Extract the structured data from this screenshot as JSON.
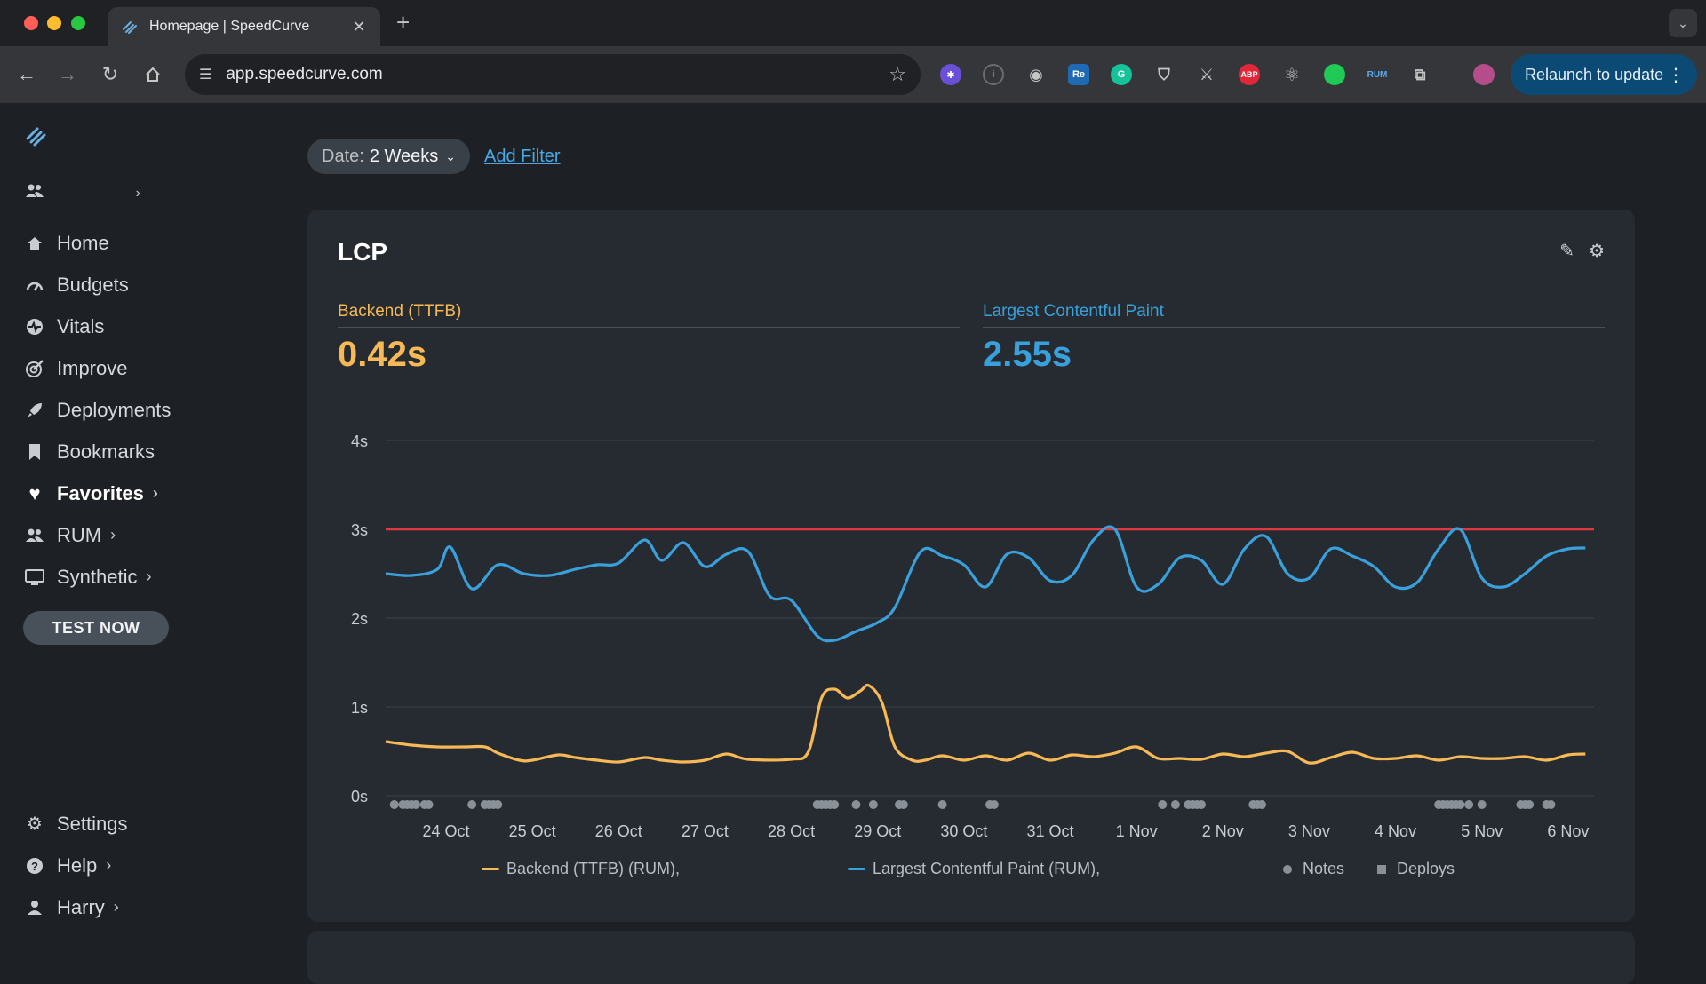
{
  "browser": {
    "tab_title": "Homepage | SpeedCurve",
    "url": "app.speedcurve.com",
    "relaunch_label": "Relaunch to update",
    "extension_labels": [
      "Re",
      "ABP",
      "RUM"
    ]
  },
  "sidebar": {
    "items": [
      {
        "label": "Home",
        "icon": "home-icon"
      },
      {
        "label": "Budgets",
        "icon": "gauge-icon"
      },
      {
        "label": "Vitals",
        "icon": "heartbeat-icon"
      },
      {
        "label": "Improve",
        "icon": "target-icon"
      },
      {
        "label": "Deployments",
        "icon": "rocket-icon"
      },
      {
        "label": "Bookmarks",
        "icon": "bookmark-icon"
      },
      {
        "label": "Favorites",
        "icon": "heart-icon"
      },
      {
        "label": "RUM",
        "icon": "users-icon"
      },
      {
        "label": "Synthetic",
        "icon": "monitor-icon"
      }
    ],
    "test_now_label": "TEST NOW",
    "bottom_items": [
      {
        "label": "Settings",
        "icon": "gear-icon"
      },
      {
        "label": "Help",
        "icon": "help-icon"
      },
      {
        "label": "Harry",
        "icon": "user-icon"
      }
    ]
  },
  "filters": {
    "date_label": "Date:",
    "date_value": "2 Weeks",
    "add_filter_label": "Add Filter"
  },
  "card": {
    "title": "LCP",
    "metrics": [
      {
        "label": "Backend (TTFB)",
        "value": "0.42s",
        "color": "#f7b955"
      },
      {
        "label": "Largest Contentful Paint",
        "value": "2.55s",
        "color": "#3aa0db"
      }
    ]
  },
  "colors": {
    "backend": "#f7b955",
    "lcp": "#3aa0db",
    "budget": "#e0383e",
    "markers": "#8a9098"
  },
  "chart_data": {
    "type": "line",
    "x_ticks": [
      "24 Oct",
      "25 Oct",
      "26 Oct",
      "27 Oct",
      "28 Oct",
      "29 Oct",
      "30 Oct",
      "31 Oct",
      "1 Nov",
      "2 Nov",
      "3 Nov",
      "4 Nov",
      "5 Nov",
      "6 Nov"
    ],
    "y_ticks": [
      "0s",
      "1s",
      "2s",
      "3s",
      "4s"
    ],
    "ylim": [
      0,
      4
    ],
    "xlim_days": [
      -0.7,
      13.3
    ],
    "threshold": 3,
    "grid": true,
    "legend": [
      {
        "label": "Backend (TTFB) (RUM),",
        "kind": "line",
        "color": "#f7b955"
      },
      {
        "label": "Largest Contentful Paint (RUM),",
        "kind": "line",
        "color": "#3aa0db"
      },
      {
        "label": "Notes",
        "kind": "dot",
        "color": "#8a9098"
      },
      {
        "label": "Deploys",
        "kind": "square",
        "color": "#8a9098"
      }
    ],
    "series": [
      {
        "name": "Backend (TTFB) (RUM),",
        "color": "#f7b955",
        "x": [
          -0.7,
          -0.4,
          -0.1,
          0.2,
          0.45,
          0.6,
          0.85,
          1.0,
          1.3,
          1.5,
          1.75,
          2.0,
          2.3,
          2.5,
          2.75,
          3.0,
          3.25,
          3.5,
          4.0,
          4.2,
          4.35,
          4.5,
          4.65,
          4.8,
          4.9,
          5.05,
          5.2,
          5.4,
          5.55,
          5.75,
          6.0,
          6.25,
          6.5,
          6.75,
          7.0,
          7.25,
          7.5,
          7.75,
          8.0,
          8.25,
          8.5,
          8.75,
          9.0,
          9.25,
          9.5,
          9.75,
          10.0,
          10.25,
          10.5,
          10.75,
          11.0,
          11.25,
          11.5,
          11.75,
          12.0,
          12.25,
          12.5,
          12.75,
          13.0,
          13.2
        ],
        "y": [
          0.61,
          0.57,
          0.55,
          0.55,
          0.55,
          0.48,
          0.4,
          0.4,
          0.46,
          0.43,
          0.4,
          0.38,
          0.43,
          0.4,
          0.38,
          0.4,
          0.47,
          0.41,
          0.41,
          0.5,
          1.1,
          1.2,
          1.1,
          1.18,
          1.24,
          1.05,
          0.55,
          0.4,
          0.4,
          0.45,
          0.4,
          0.45,
          0.4,
          0.48,
          0.4,
          0.46,
          0.44,
          0.48,
          0.55,
          0.42,
          0.42,
          0.41,
          0.47,
          0.44,
          0.48,
          0.5,
          0.37,
          0.43,
          0.49,
          0.42,
          0.42,
          0.45,
          0.4,
          0.44,
          0.42,
          0.42,
          0.44,
          0.4,
          0.46,
          0.47
        ]
      },
      {
        "name": "Largest Contentful Paint (RUM),",
        "color": "#3aa0db",
        "x": [
          -0.7,
          -0.4,
          -0.1,
          0.05,
          0.3,
          0.6,
          0.9,
          1.2,
          1.5,
          1.75,
          2.0,
          2.3,
          2.5,
          2.75,
          3.0,
          3.25,
          3.5,
          3.75,
          4.0,
          4.3,
          4.5,
          4.75,
          5.0,
          5.2,
          5.5,
          5.75,
          6.0,
          6.25,
          6.5,
          6.75,
          7.0,
          7.25,
          7.5,
          7.75,
          8.0,
          8.25,
          8.5,
          8.75,
          9.0,
          9.25,
          9.5,
          9.75,
          10.0,
          10.25,
          10.5,
          10.75,
          11.0,
          11.25,
          11.5,
          11.75,
          12.0,
          12.25,
          12.5,
          12.75,
          13.0,
          13.2
        ],
        "y": [
          2.5,
          2.48,
          2.55,
          2.8,
          2.33,
          2.6,
          2.5,
          2.48,
          2.55,
          2.6,
          2.62,
          2.88,
          2.65,
          2.85,
          2.58,
          2.72,
          2.75,
          2.25,
          2.2,
          1.8,
          1.75,
          1.85,
          1.95,
          2.12,
          2.75,
          2.7,
          2.6,
          2.35,
          2.72,
          2.68,
          2.42,
          2.48,
          2.88,
          3.0,
          2.35,
          2.38,
          2.68,
          2.65,
          2.38,
          2.78,
          2.92,
          2.5,
          2.45,
          2.78,
          2.7,
          2.58,
          2.35,
          2.4,
          2.78,
          3.0,
          2.45,
          2.35,
          2.5,
          2.7,
          2.78,
          2.79
        ]
      }
    ],
    "notes_x": [
      -0.6,
      -0.5,
      -0.45,
      -0.4,
      -0.35,
      -0.25,
      -0.2,
      0.3,
      0.45,
      0.5,
      0.55,
      0.6,
      4.3,
      4.35,
      4.4,
      4.45,
      4.5,
      4.75,
      4.95,
      5.25,
      5.3,
      5.75,
      6.3,
      6.35,
      8.3,
      8.45,
      8.6,
      8.65,
      8.7,
      8.75,
      9.35,
      9.4,
      9.45,
      11.5,
      11.55,
      11.6,
      11.65,
      11.7,
      11.75,
      11.85,
      12.0,
      12.45,
      12.5,
      12.55,
      12.75,
      12.8
    ]
  }
}
